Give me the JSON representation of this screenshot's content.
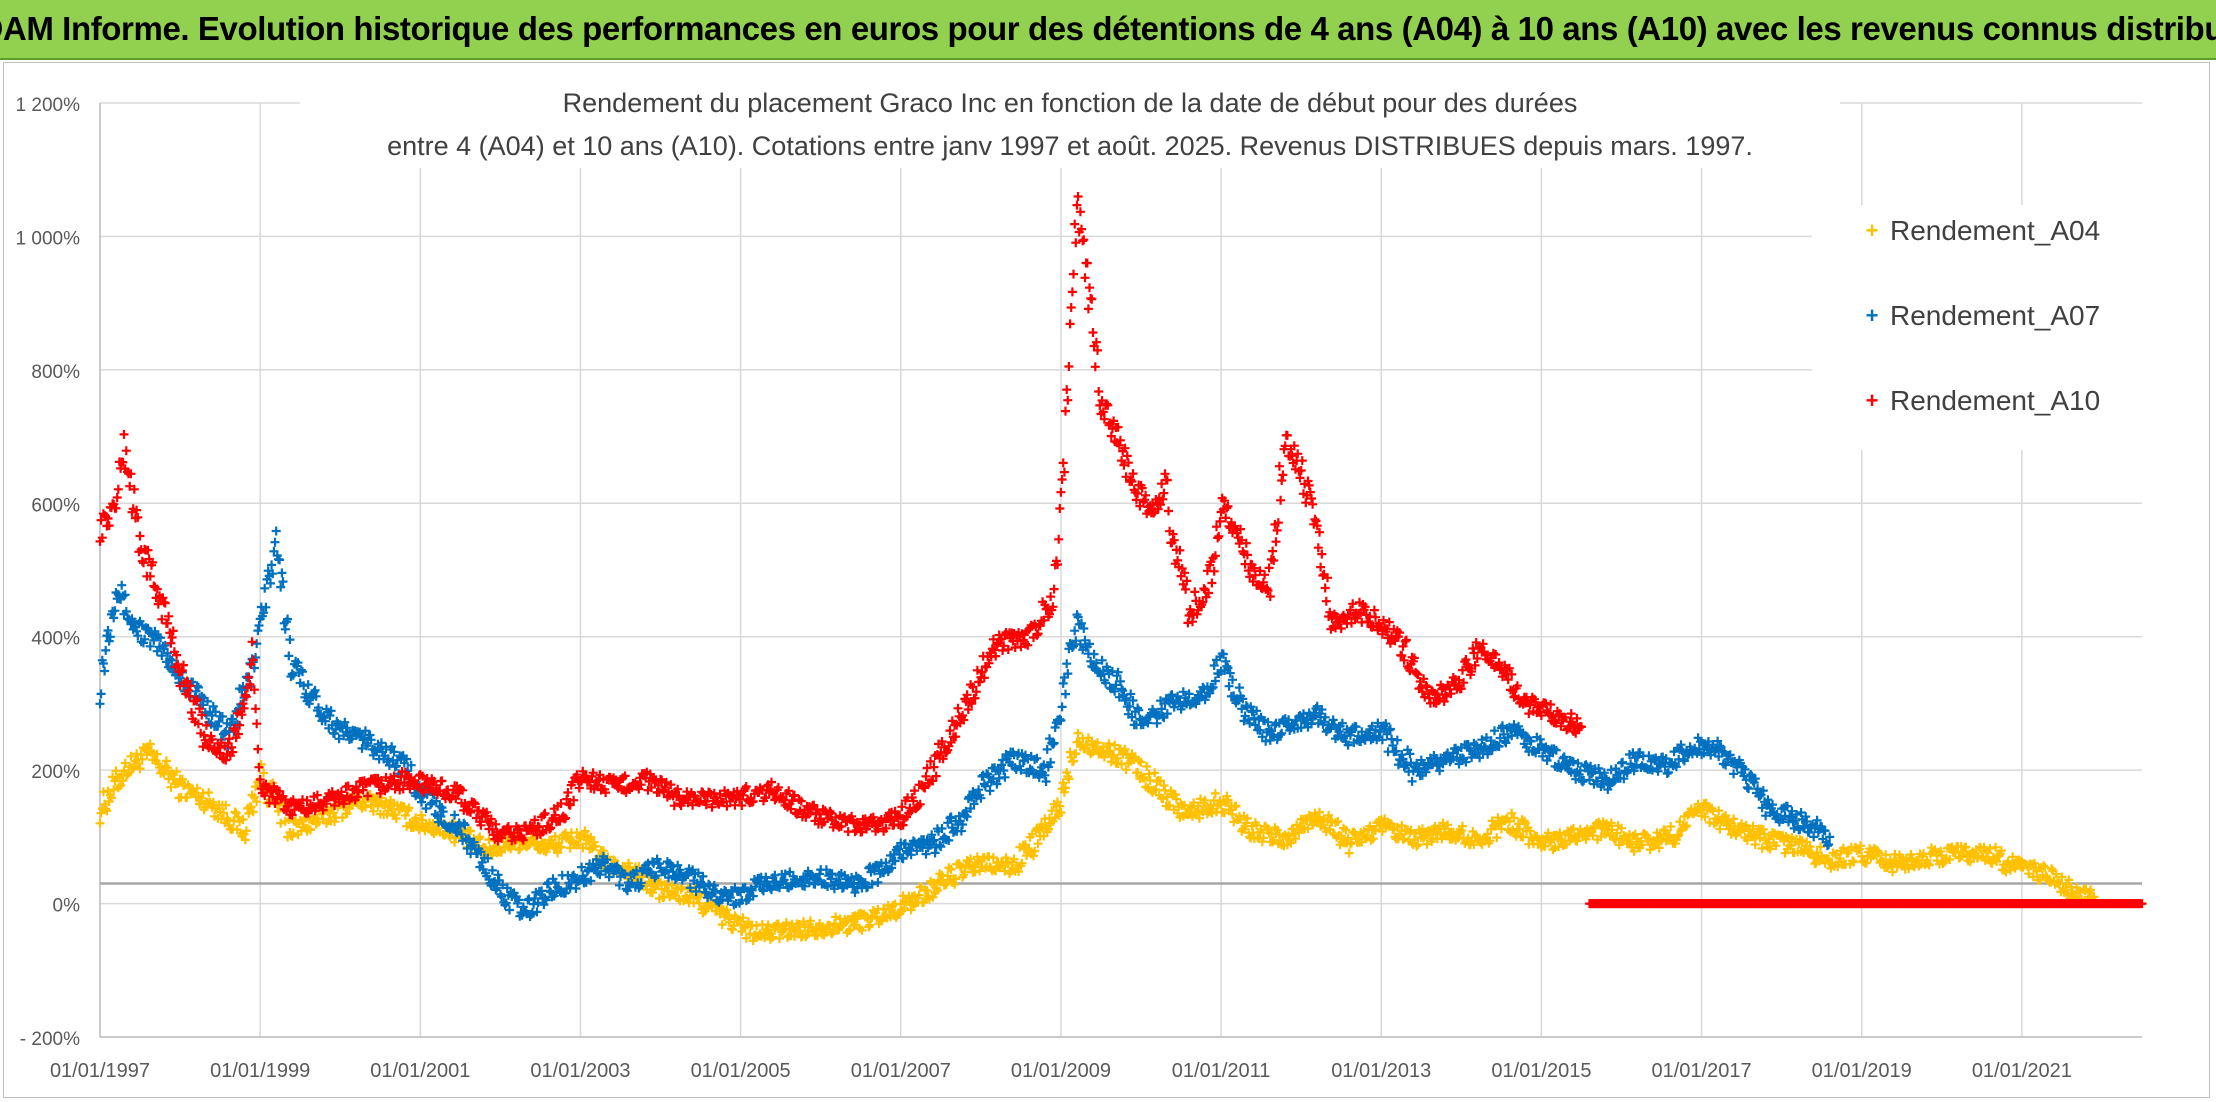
{
  "banner": {
    "title": "ADAM Informe. Evolution historique des performances en euros pour des détentions de 4 ans (A04) à 10 ans (A10) avec les revenus connus distribués"
  },
  "chart_data": {
    "type": "scatter",
    "title_line1": "Rendement du placement Graco Inc en fonction de la date de début pour des durées",
    "title_line2": "entre 4 (A04) et 10 ans (A10). Cotations entre janv 1997 et août. 2025. Revenus DISTRIBUES depuis mars. 1997.",
    "xlabel": "",
    "ylabel": "",
    "xlim": [
      1997.0,
      2022.5
    ],
    "ylim": [
      -200,
      1200
    ],
    "y_ticks": [
      -200,
      0,
      200,
      400,
      600,
      800,
      1000,
      1200
    ],
    "y_tick_labels": [
      "- 200%",
      "0%",
      "200%",
      "400%",
      "600%",
      "800%",
      "1 000%",
      "1 200%"
    ],
    "x_ticks": [
      1997.0,
      1999.0,
      2001.0,
      2003.0,
      2005.0,
      2007.0,
      2009.0,
      2011.0,
      2013.0,
      2015.0,
      2017.0,
      2019.0,
      2021.0
    ],
    "x_tick_labels": [
      "01/01/1997",
      "01/01/1999",
      "01/01/2001",
      "01/01/2003",
      "01/01/2005",
      "01/01/2007",
      "01/01/2009",
      "01/01/2011",
      "01/01/2013",
      "01/01/2015",
      "01/01/2017",
      "01/01/2019",
      "01/01/2021"
    ],
    "reference_line_y": 30,
    "grid": "horizontal",
    "legend_position": "top-right",
    "marker": "+",
    "series": [
      {
        "name": "Rendement_A04",
        "color": "#ffc000",
        "points": [
          [
            1997.0,
            140
          ],
          [
            1997.3,
            200
          ],
          [
            1997.6,
            225
          ],
          [
            1998.0,
            175
          ],
          [
            1998.4,
            150
          ],
          [
            1998.8,
            110
          ],
          [
            1999.0,
            190
          ],
          [
            1999.4,
            110
          ],
          [
            1999.8,
            130
          ],
          [
            2000.2,
            155
          ],
          [
            2000.6,
            145
          ],
          [
            2001.0,
            120
          ],
          [
            2001.4,
            110
          ],
          [
            2001.8,
            80
          ],
          [
            2002.2,
            95
          ],
          [
            2002.6,
            85
          ],
          [
            2003.0,
            100
          ],
          [
            2003.3,
            60
          ],
          [
            2003.6,
            50
          ],
          [
            2004.0,
            20
          ],
          [
            2004.4,
            10
          ],
          [
            2004.8,
            -20
          ],
          [
            2005.2,
            -45
          ],
          [
            2005.6,
            -40
          ],
          [
            2006.0,
            -35
          ],
          [
            2006.4,
            -30
          ],
          [
            2006.8,
            -15
          ],
          [
            2007.0,
            -5
          ],
          [
            2007.3,
            15
          ],
          [
            2007.6,
            40
          ],
          [
            2008.0,
            60
          ],
          [
            2008.4,
            55
          ],
          [
            2008.8,
            110
          ],
          [
            2009.0,
            150
          ],
          [
            2009.2,
            250
          ],
          [
            2009.5,
            230
          ],
          [
            2009.8,
            220
          ],
          [
            2010.2,
            175
          ],
          [
            2010.6,
            135
          ],
          [
            2011.0,
            155
          ],
          [
            2011.4,
            110
          ],
          [
            2011.8,
            95
          ],
          [
            2012.2,
            135
          ],
          [
            2012.6,
            90
          ],
          [
            2013.0,
            115
          ],
          [
            2013.4,
            95
          ],
          [
            2013.8,
            110
          ],
          [
            2014.2,
            95
          ],
          [
            2014.6,
            125
          ],
          [
            2015.0,
            90
          ],
          [
            2015.4,
            105
          ],
          [
            2015.8,
            110
          ],
          [
            2016.2,
            90
          ],
          [
            2016.6,
            100
          ],
          [
            2017.0,
            140
          ],
          [
            2017.4,
            115
          ],
          [
            2017.8,
            95
          ],
          [
            2018.2,
            85
          ],
          [
            2018.6,
            65
          ],
          [
            2019.0,
            75
          ],
          [
            2019.4,
            60
          ],
          [
            2019.8,
            70
          ],
          [
            2020.2,
            75
          ],
          [
            2020.6,
            75
          ],
          [
            2021.0,
            50
          ],
          [
            2021.3,
            45
          ],
          [
            2021.6,
            20
          ],
          [
            2021.9,
            10
          ]
        ]
      },
      {
        "name": "Rendement_A07",
        "color": "#0070c0",
        "points": [
          [
            1997.0,
            330
          ],
          [
            1997.2,
            480
          ],
          [
            1997.4,
            420
          ],
          [
            1997.8,
            380
          ],
          [
            1998.0,
            340
          ],
          [
            1998.3,
            300
          ],
          [
            1998.6,
            250
          ],
          [
            1998.9,
            350
          ],
          [
            1999.0,
            430
          ],
          [
            1999.2,
            530
          ],
          [
            1999.4,
            360
          ],
          [
            1999.7,
            300
          ],
          [
            2000.0,
            260
          ],
          [
            2000.4,
            240
          ],
          [
            2000.8,
            205
          ],
          [
            2001.2,
            140
          ],
          [
            2001.5,
            110
          ],
          [
            2001.8,
            60
          ],
          [
            2002.0,
            20
          ],
          [
            2002.3,
            -15
          ],
          [
            2002.6,
            20
          ],
          [
            2003.0,
            40
          ],
          [
            2003.3,
            60
          ],
          [
            2003.6,
            30
          ],
          [
            2004.0,
            55
          ],
          [
            2004.3,
            45
          ],
          [
            2004.6,
            20
          ],
          [
            2004.9,
            10
          ],
          [
            2005.2,
            25
          ],
          [
            2005.6,
            35
          ],
          [
            2006.0,
            40
          ],
          [
            2006.4,
            30
          ],
          [
            2006.8,
            50
          ],
          [
            2007.0,
            80
          ],
          [
            2007.4,
            90
          ],
          [
            2007.8,
            130
          ],
          [
            2008.0,
            175
          ],
          [
            2008.4,
            215
          ],
          [
            2008.8,
            200
          ],
          [
            2009.0,
            300
          ],
          [
            2009.2,
            420
          ],
          [
            2009.4,
            360
          ],
          [
            2009.7,
            330
          ],
          [
            2010.0,
            270
          ],
          [
            2010.4,
            300
          ],
          [
            2010.8,
            320
          ],
          [
            2011.0,
            360
          ],
          [
            2011.3,
            290
          ],
          [
            2011.6,
            255
          ],
          [
            2011.9,
            270
          ],
          [
            2012.2,
            280
          ],
          [
            2012.6,
            250
          ],
          [
            2013.0,
            260
          ],
          [
            2013.4,
            200
          ],
          [
            2013.8,
            215
          ],
          [
            2014.2,
            230
          ],
          [
            2014.6,
            260
          ],
          [
            2015.0,
            230
          ],
          [
            2015.4,
            200
          ],
          [
            2015.8,
            185
          ],
          [
            2016.2,
            215
          ],
          [
            2016.6,
            205
          ],
          [
            2016.9,
            240
          ],
          [
            2017.2,
            230
          ],
          [
            2017.5,
            200
          ],
          [
            2017.8,
            145
          ],
          [
            2018.2,
            125
          ],
          [
            2018.6,
            100
          ]
        ]
      },
      {
        "name": "Rendement_A10",
        "color": "#ff0000",
        "points": [
          [
            1997.0,
            560
          ],
          [
            1997.2,
            600
          ],
          [
            1997.3,
            690
          ],
          [
            1997.5,
            540
          ],
          [
            1997.8,
            440
          ],
          [
            1998.0,
            350
          ],
          [
            1998.3,
            255
          ],
          [
            1998.6,
            220
          ],
          [
            1998.8,
            300
          ],
          [
            1998.9,
            360
          ],
          [
            1999.0,
            180
          ],
          [
            1999.3,
            145
          ],
          [
            1999.6,
            145
          ],
          [
            2000.0,
            160
          ],
          [
            2000.4,
            175
          ],
          [
            2000.8,
            185
          ],
          [
            2001.2,
            175
          ],
          [
            2001.5,
            160
          ],
          [
            2001.8,
            125
          ],
          [
            2002.0,
            100
          ],
          [
            2002.4,
            110
          ],
          [
            2002.8,
            140
          ],
          [
            2003.0,
            190
          ],
          [
            2003.4,
            175
          ],
          [
            2003.8,
            185
          ],
          [
            2004.2,
            160
          ],
          [
            2004.6,
            155
          ],
          [
            2005.0,
            160
          ],
          [
            2005.4,
            170
          ],
          [
            2005.8,
            140
          ],
          [
            2006.2,
            120
          ],
          [
            2006.6,
            115
          ],
          [
            2007.0,
            130
          ],
          [
            2007.3,
            175
          ],
          [
            2007.6,
            250
          ],
          [
            2007.9,
            320
          ],
          [
            2008.2,
            390
          ],
          [
            2008.6,
            400
          ],
          [
            2008.9,
            460
          ],
          [
            2009.0,
            590
          ],
          [
            2009.1,
            800
          ],
          [
            2009.2,
            1050
          ],
          [
            2009.3,
            970
          ],
          [
            2009.5,
            750
          ],
          [
            2009.7,
            700
          ],
          [
            2009.9,
            630
          ],
          [
            2010.1,
            590
          ],
          [
            2010.3,
            620
          ],
          [
            2010.6,
            430
          ],
          [
            2010.9,
            500
          ],
          [
            2011.0,
            600
          ],
          [
            2011.2,
            560
          ],
          [
            2011.4,
            490
          ],
          [
            2011.6,
            480
          ],
          [
            2011.8,
            700
          ],
          [
            2012.0,
            650
          ],
          [
            2012.2,
            560
          ],
          [
            2012.4,
            420
          ],
          [
            2012.7,
            440
          ],
          [
            2013.0,
            420
          ],
          [
            2013.3,
            380
          ],
          [
            2013.6,
            310
          ],
          [
            2013.9,
            320
          ],
          [
            2014.2,
            380
          ],
          [
            2014.5,
            360
          ],
          [
            2014.8,
            300
          ],
          [
            2015.2,
            280
          ],
          [
            2015.5,
            265
          ]
        ]
      },
      {
        "name": "",
        "color": "#ff0000",
        "points": [
          [
            2015.6,
            0
          ],
          [
            2016.0,
            0
          ],
          [
            2016.5,
            0
          ],
          [
            2017.0,
            0
          ],
          [
            2017.5,
            0
          ],
          [
            2018.0,
            0
          ],
          [
            2018.5,
            0
          ],
          [
            2019.0,
            0
          ],
          [
            2019.5,
            0
          ],
          [
            2020.0,
            0
          ],
          [
            2020.5,
            0
          ],
          [
            2021.0,
            0
          ],
          [
            2021.5,
            0
          ],
          [
            2022.0,
            0
          ],
          [
            2022.5,
            0
          ]
        ]
      }
    ]
  },
  "legend": {
    "a04": "Rendement_A04",
    "a07": "Rendement_A07",
    "a10": "Rendement_A10",
    "marker": "+"
  }
}
